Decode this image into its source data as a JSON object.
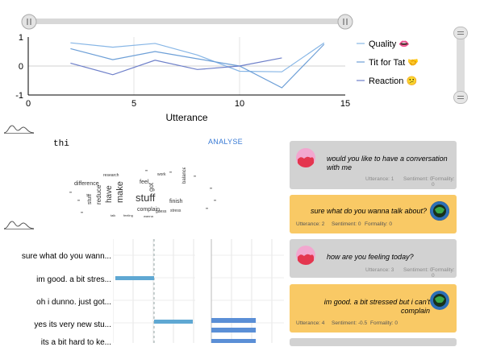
{
  "line_chart": {
    "chart_data": {
      "type": "line",
      "x": [
        2,
        4,
        6,
        8,
        10,
        12,
        14
      ],
      "series": [
        {
          "name": "Quality 👄",
          "color": "#87b6e6",
          "values": [
            0.8,
            0.65,
            0.78,
            0.38,
            -0.18,
            -0.2,
            0.8
          ]
        },
        {
          "name": "Tit for Tat 🤝",
          "color": "#6d9fd7",
          "values": [
            0.6,
            0.22,
            0.5,
            0.25,
            0.0,
            -0.75,
            0.75
          ]
        },
        {
          "name": "Reaction 😕",
          "color": "#6d7fc9",
          "values": [
            0.1,
            -0.3,
            0.2,
            -0.12,
            0.0,
            0.28,
            null
          ]
        }
      ],
      "xlabel": "Utterance",
      "xlim": [
        0,
        15
      ],
      "ylim": [
        -1,
        1
      ],
      "x_ticks": [
        "0",
        "5",
        "10",
        "15"
      ],
      "y_ticks": [
        "1",
        "0",
        "-1"
      ],
      "grid": true,
      "legend": "right"
    }
  },
  "input": {
    "value": "thi",
    "analyse_label": "ANALYSE"
  },
  "word_cloud": {
    "words": [
      {
        "text": "stuff",
        "size": 13
      },
      {
        "text": "make",
        "size": 11
      },
      {
        "text": "have",
        "size": 10
      },
      {
        "text": "reduce",
        "size": 8
      },
      {
        "text": "stuff",
        "size": 7
      },
      {
        "text": "difference",
        "size": 7
      },
      {
        "text": "feel",
        "size": 7
      },
      {
        "text": "got",
        "size": 8
      },
      {
        "text": "complain",
        "size": 7
      },
      {
        "text": "finish",
        "size": 7
      },
      {
        "text": "balance",
        "size": 6
      },
      {
        "text": "work",
        "size": 5
      },
      {
        "text": "research",
        "size": 5
      },
      {
        "text": "stress",
        "size": 5
      },
      {
        "text": "guess",
        "size": 5
      },
      {
        "text": "wanna",
        "size": 4
      },
      {
        "text": "feeling",
        "size": 4
      },
      {
        "text": "talk",
        "size": 4
      }
    ]
  },
  "chat": [
    {
      "role": "bot",
      "text": "would you like to have a conversation with me",
      "utterance_label": "Utterance: 1",
      "sentiment_label": "Sentiment: 0",
      "formality_label": "Formality: 0"
    },
    {
      "role": "user",
      "text": "sure what do you wanna talk about?",
      "utterance_label": "Utterance: 2",
      "sentiment_label": "Sentiment: 0",
      "formality_label": "Formality: 0"
    },
    {
      "role": "bot",
      "text": "how are you feeling today?",
      "utterance_label": "Utterance: 3",
      "sentiment_label": "Sentiment: 0",
      "formality_label": "Formality: 0"
    },
    {
      "role": "user",
      "text": "im good. a bit stressed but i can't complain",
      "utterance_label": "Utterance: 4",
      "sentiment_label": "Sentiment: -0.5",
      "formality_label": "Formality: 0"
    }
  ],
  "utterance_list": [
    "sure what do you wann...",
    "im good. a bit stres...",
    "oh i dunno. just got...",
    "yes its very new stu...",
    "its a bit hard to ke..."
  ],
  "bar_chart": {
    "chart_data": {
      "type": "bar",
      "orientation": "horizontal",
      "categories": [
        "sure what do you wann...",
        "im good. a bit stres...",
        "oh i dunno. just got...",
        "yes its very new stu...",
        "its a bit hard to ke..."
      ],
      "series": [
        {
          "values": [
            0,
            -0.8,
            0,
            0.8,
            0
          ],
          "color": "#5fa8d3"
        },
        {
          "values": [
            0,
            0,
            0,
            0.95,
            0.95
          ],
          "color": "#5b8fd6"
        }
      ]
    }
  },
  "colors": {
    "bot_card": "#d2d2d2",
    "user_card": "#f9c965",
    "accent": "#3a7bd5"
  }
}
